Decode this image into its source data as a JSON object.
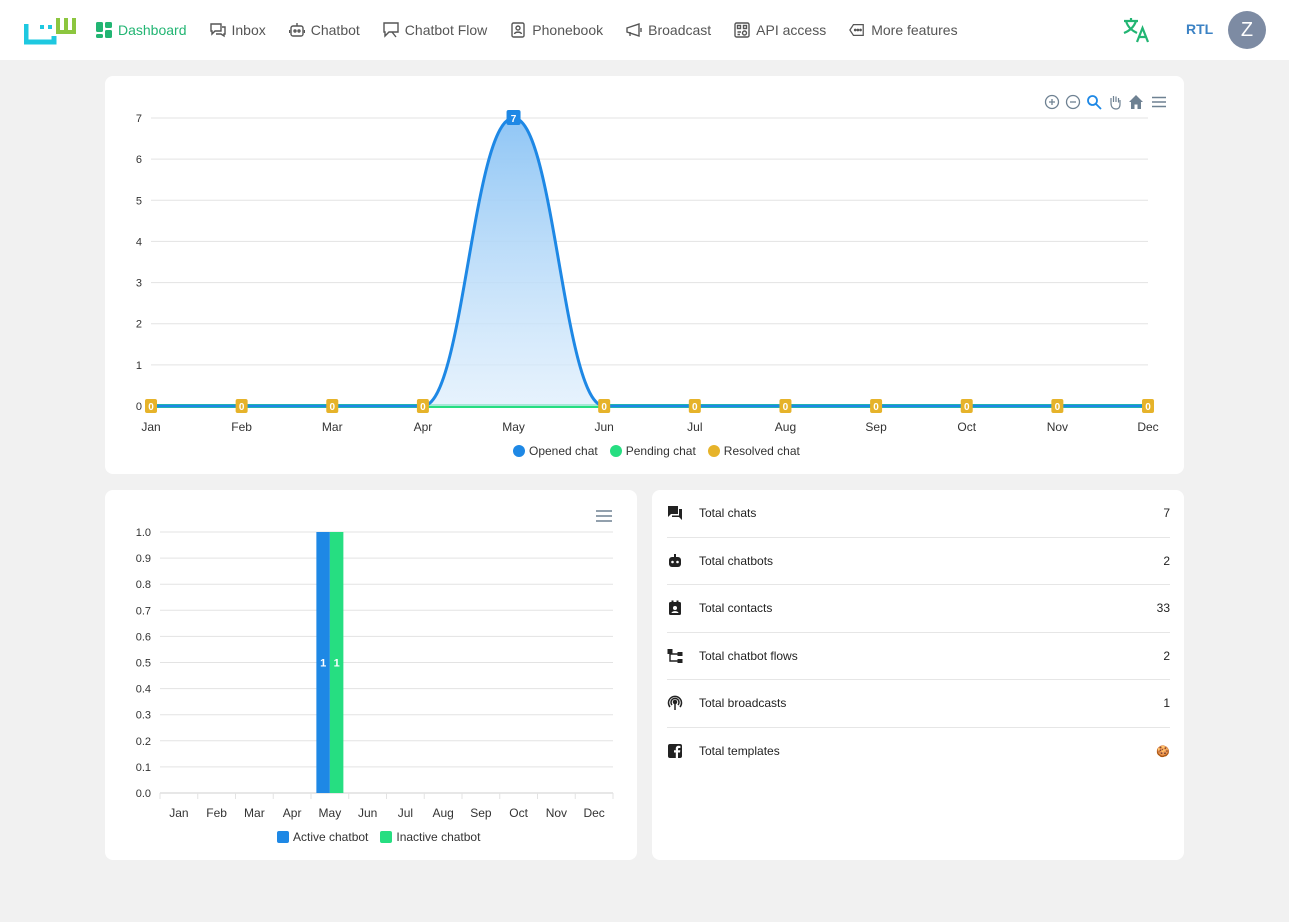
{
  "nav": {
    "items": [
      {
        "label": "Dashboard",
        "icon": "dashboard-icon",
        "active": true
      },
      {
        "label": "Inbox",
        "icon": "inbox-icon"
      },
      {
        "label": "Chatbot",
        "icon": "robot-icon"
      },
      {
        "label": "Chatbot Flow",
        "icon": "flow-icon"
      },
      {
        "label": "Phonebook",
        "icon": "phonebook-icon"
      },
      {
        "label": "Broadcast",
        "icon": "broadcast-icon"
      },
      {
        "label": "API access",
        "icon": "api-icon"
      },
      {
        "label": "More features",
        "icon": "more-features-icon"
      }
    ],
    "rtl_label": "RTL",
    "avatar_initial": "Z"
  },
  "colors": {
    "accent": "#22b573",
    "opened": "#1e88e5",
    "pending": "#26de81",
    "resolved": "#e6b32a"
  },
  "chart_data": [
    {
      "type": "area",
      "categories": [
        "Jan",
        "Feb",
        "Mar",
        "Apr",
        "May",
        "Jun",
        "Jul",
        "Aug",
        "Sep",
        "Oct",
        "Nov",
        "Dec"
      ],
      "series": [
        {
          "name": "Opened chat",
          "values": [
            0,
            0,
            0,
            0,
            7,
            0,
            0,
            0,
            0,
            0,
            0,
            0
          ]
        },
        {
          "name": "Pending chat",
          "values": [
            0,
            0,
            0,
            0,
            0,
            0,
            0,
            0,
            0,
            0,
            0,
            0
          ]
        },
        {
          "name": "Resolved chat",
          "values": [
            0,
            0,
            0,
            0,
            0,
            0,
            0,
            0,
            0,
            0,
            0,
            0
          ]
        }
      ],
      "yticks": [
        "0",
        "1",
        "2",
        "3",
        "4",
        "5",
        "6",
        "7"
      ],
      "ylim": [
        0,
        7
      ],
      "grid": true,
      "legend_position": "bottom",
      "title": "",
      "xlabel": "",
      "ylabel": ""
    },
    {
      "type": "bar",
      "categories": [
        "Jan",
        "Feb",
        "Mar",
        "Apr",
        "May",
        "Jun",
        "Jul",
        "Aug",
        "Sep",
        "Oct",
        "Nov",
        "Dec"
      ],
      "series": [
        {
          "name": "Active chatbot",
          "values": [
            0,
            0,
            0,
            0,
            1,
            0,
            0,
            0,
            0,
            0,
            0,
            0
          ]
        },
        {
          "name": "Inactive chatbot",
          "values": [
            0,
            0,
            0,
            0,
            1,
            0,
            0,
            0,
            0,
            0,
            0,
            0
          ]
        }
      ],
      "yticks": [
        "0.0",
        "0.1",
        "0.2",
        "0.3",
        "0.4",
        "0.5",
        "0.6",
        "0.7",
        "0.8",
        "0.9",
        "1.0"
      ],
      "ylim": [
        0,
        1
      ],
      "grid": true,
      "legend_position": "bottom",
      "title": "",
      "xlabel": "",
      "ylabel": ""
    }
  ],
  "stats": [
    {
      "label": "Total chats",
      "value": "7",
      "icon": "chat-icon"
    },
    {
      "label": "Total chatbots",
      "value": "2",
      "icon": "robot-icon"
    },
    {
      "label": "Total contacts",
      "value": "33",
      "icon": "contacts-icon"
    },
    {
      "label": "Total chatbot flows",
      "value": "2",
      "icon": "flow-tree-icon"
    },
    {
      "label": "Total broadcasts",
      "value": "1",
      "icon": "broadcast-icon"
    },
    {
      "label": "Total templates",
      "value": "🍪",
      "icon": "facebook-icon"
    }
  ]
}
